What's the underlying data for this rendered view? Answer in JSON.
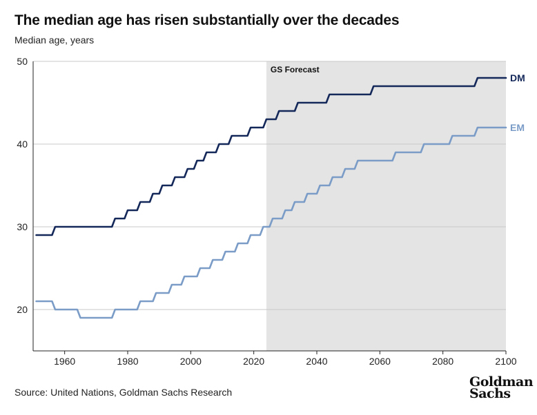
{
  "title": "The median age has risen substantially over the decades",
  "subtitle": "Median age, years",
  "source": "Source: United Nations, Goldman Sachs Research",
  "logo": {
    "line1": "Goldman",
    "line2": "Sachs"
  },
  "chart_data": {
    "type": "line",
    "title": "The median age has risen substantially over the decades",
    "ylabel": "Median age, years",
    "xlabel": "",
    "xlim": [
      1950,
      2100
    ],
    "ylim": [
      15,
      50
    ],
    "x_ticks": [
      1960,
      1980,
      2000,
      2020,
      2040,
      2060,
      2080,
      2100
    ],
    "y_ticks": [
      20,
      30,
      40,
      50
    ],
    "grid": "horizontal",
    "forecast": {
      "label": "GS Forecast",
      "start": 2024,
      "end": 2100
    },
    "series": [
      {
        "name": "DM",
        "color": "#15285a",
        "x": [
          1951,
          1956,
          1957,
          1975,
          1976,
          1979,
          1980,
          1983,
          1984,
          1987,
          1988,
          1990,
          1991,
          1994,
          1995,
          1998,
          1999,
          2001,
          2002,
          2004,
          2005,
          2008,
          2009,
          2012,
          2013,
          2018,
          2019,
          2023,
          2024,
          2027,
          2028,
          2033,
          2034,
          2043,
          2044,
          2057,
          2058,
          2090,
          2091,
          2100
        ],
        "values": [
          29,
          29,
          30,
          30,
          31,
          31,
          32,
          32,
          33,
          33,
          34,
          34,
          35,
          35,
          36,
          36,
          37,
          37,
          38,
          38,
          39,
          39,
          40,
          40,
          41,
          41,
          42,
          42,
          43,
          43,
          44,
          44,
          45,
          45,
          46,
          46,
          47,
          47,
          48,
          48
        ]
      },
      {
        "name": "EM",
        "color": "#7a9cc7",
        "x": [
          1951,
          1956,
          1957,
          1964,
          1965,
          1975,
          1976,
          1983,
          1984,
          1988,
          1989,
          1993,
          1994,
          1997,
          1998,
          2002,
          2003,
          2006,
          2007,
          2010,
          2011,
          2014,
          2015,
          2018,
          2019,
          2022,
          2023,
          2025,
          2026,
          2029,
          2030,
          2032,
          2033,
          2036,
          2037,
          2040,
          2041,
          2044,
          2045,
          2048,
          2049,
          2052,
          2053,
          2056,
          2057,
          2064,
          2065,
          2073,
          2074,
          2082,
          2083,
          2090,
          2091,
          2100
        ],
        "values": [
          21,
          21,
          20,
          20,
          19,
          19,
          20,
          20,
          21,
          21,
          22,
          22,
          23,
          23,
          24,
          24,
          25,
          25,
          26,
          26,
          27,
          27,
          28,
          28,
          29,
          29,
          30,
          30,
          31,
          31,
          32,
          32,
          33,
          33,
          34,
          34,
          35,
          35,
          36,
          36,
          37,
          37,
          38,
          38,
          38,
          38,
          39,
          39,
          40,
          40,
          41,
          41,
          42,
          42
        ]
      }
    ]
  }
}
